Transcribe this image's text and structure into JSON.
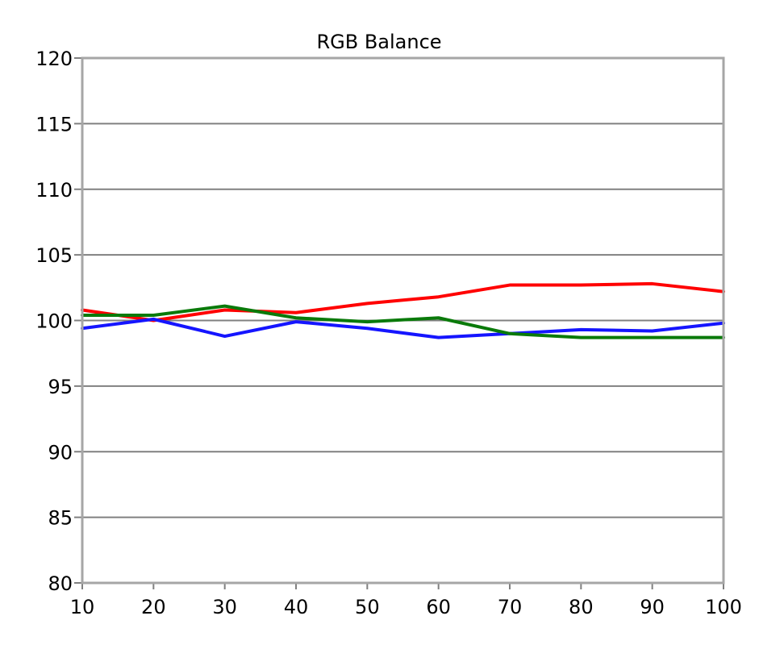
{
  "chart_data": {
    "type": "line",
    "title": "RGB Balance",
    "xlabel": "",
    "ylabel": "",
    "x": [
      10,
      20,
      30,
      40,
      50,
      60,
      70,
      80,
      90,
      100
    ],
    "xlim": [
      10,
      100
    ],
    "ylim": [
      80,
      120
    ],
    "x_ticks": [
      "10",
      "20",
      "30",
      "40",
      "50",
      "60",
      "70",
      "80",
      "90",
      "100"
    ],
    "y_ticks": [
      "80",
      "85",
      "90",
      "95",
      "100",
      "105",
      "110",
      "115",
      "120"
    ],
    "grid": true,
    "legend": "none",
    "series": [
      {
        "color": "#ff0000",
        "values": [
          100.8,
          100.0,
          100.8,
          100.6,
          101.3,
          101.8,
          102.7,
          102.7,
          102.8,
          102.2
        ]
      },
      {
        "color": "#0a7a0a",
        "values": [
          100.4,
          100.4,
          101.1,
          100.2,
          99.9,
          100.2,
          99.0,
          98.7,
          98.7,
          98.7
        ]
      },
      {
        "color": "#1515ff",
        "values": [
          99.4,
          100.1,
          98.8,
          99.9,
          99.4,
          98.7,
          99.0,
          99.3,
          99.2,
          99.8
        ]
      }
    ]
  }
}
